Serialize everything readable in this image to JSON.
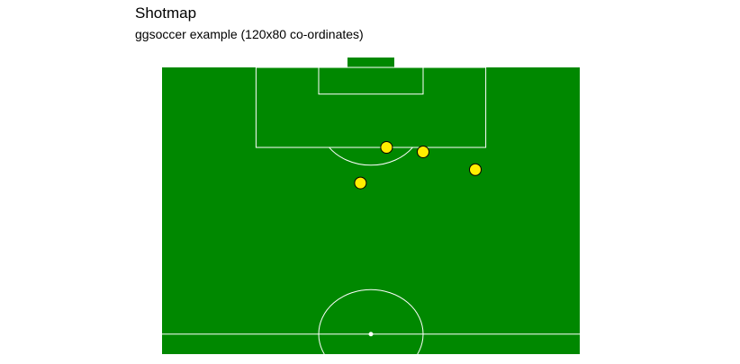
{
  "title": "Shotmap",
  "subtitle": "ggsoccer example (120x80 co-ordinates)",
  "chart_data": {
    "type": "scatter",
    "title": "Shotmap",
    "subtitle": "ggsoccer example (120x80 co-ordinates)",
    "pitch": {
      "length": 120,
      "width": 80,
      "view_x_range": [
        55.5,
        120
      ],
      "colour": "#008800",
      "line_colour": "#ffffff"
    },
    "x": [
      102,
      101,
      97,
      94
    ],
    "y": [
      43,
      50,
      60,
      38
    ],
    "point_colour": "#ffee00",
    "point_outline": "#000000"
  }
}
